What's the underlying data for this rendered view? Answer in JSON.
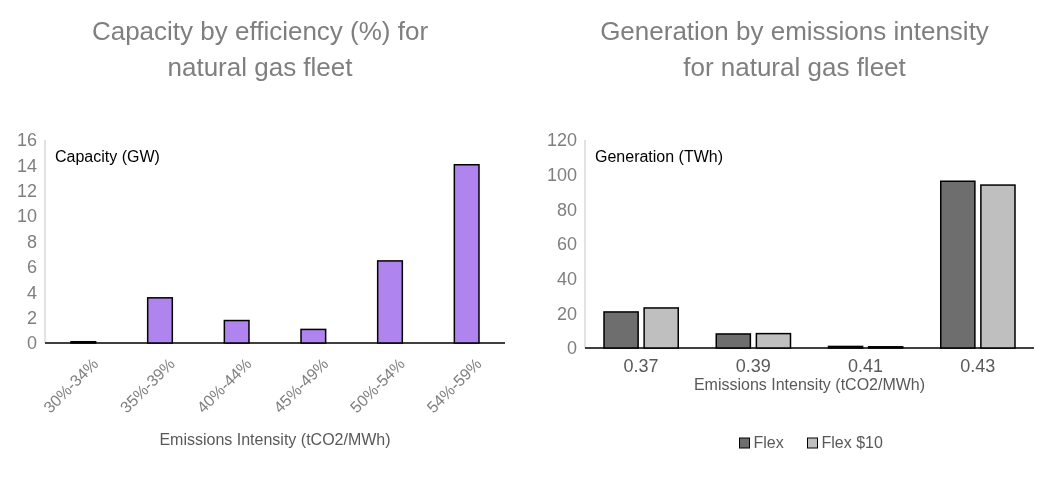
{
  "chart_data": [
    {
      "type": "bar",
      "title": "Capacity by efficiency (%) for natural gas fleet",
      "ylabel": "Capacity (GW)",
      "xlabel": "Emissions Intensity (tCO2/MWh)",
      "categories": [
        "30%-34%",
        "35%-39%",
        "40%-44%",
        "45%-49%",
        "50%-54%",
        "54%-59%"
      ],
      "series": [
        {
          "color": "#b084ee",
          "values": [
            0.1,
            3.56,
            1.77,
            1.07,
            6.47,
            14.05
          ]
        }
      ],
      "ylim": [
        0,
        16
      ],
      "yticks": [
        0,
        2,
        4,
        6,
        8,
        10,
        12,
        14,
        16
      ],
      "grid": false,
      "legend": false
    },
    {
      "type": "bar",
      "title": "Generation by emissions intensity for natural gas fleet",
      "ylabel": "Generation (TWh)",
      "xlabel": "Emissions Intensity (tCO2/MWh)",
      "categories": [
        "0.37",
        "0.39",
        "0.41",
        "0.43"
      ],
      "series": [
        {
          "name": "Flex",
          "color": "#6e6e6e",
          "values": [
            20.8,
            8.1,
            0.9,
            96.2
          ]
        },
        {
          "name": "Flex $10",
          "color": "#bfbfbf",
          "values": [
            23.1,
            8.3,
            0.7,
            94.0
          ]
        }
      ],
      "ylim": [
        0,
        120
      ],
      "yticks": [
        0,
        20,
        40,
        60,
        80,
        100,
        120
      ],
      "grid": false,
      "legend": "bottom"
    }
  ]
}
